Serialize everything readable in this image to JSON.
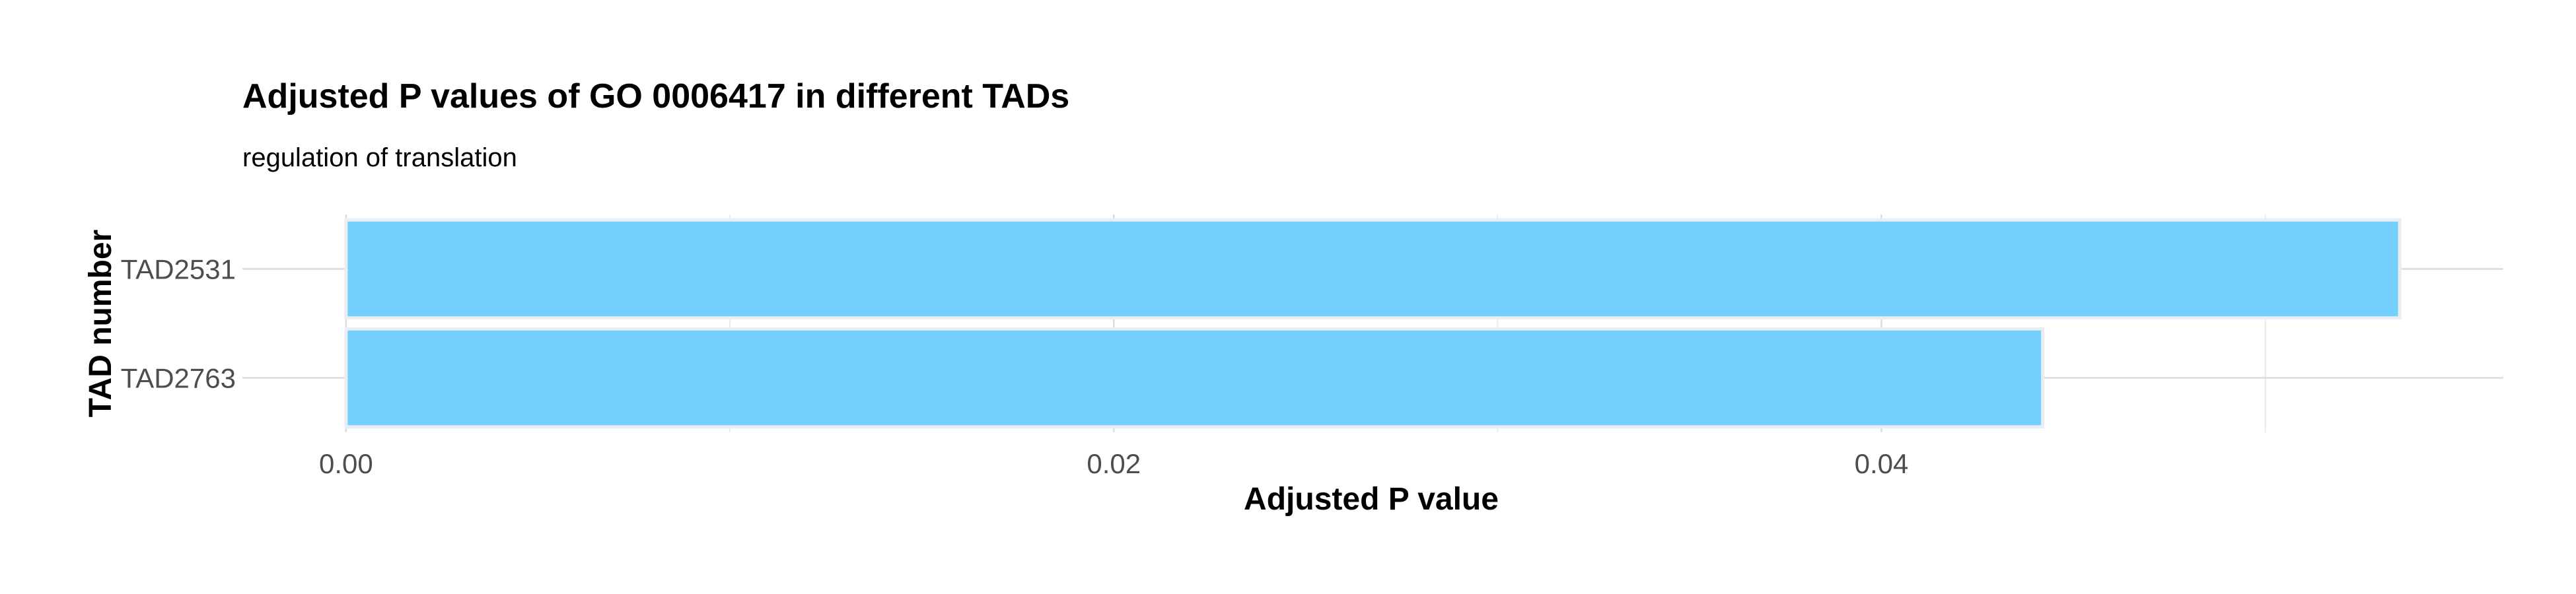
{
  "chart_data": {
    "type": "bar",
    "orientation": "horizontal",
    "title": "Adjusted P values of GO 0006417 in different TADs",
    "subtitle": "regulation of translation",
    "xlabel": "Adjusted P value",
    "ylabel": "TAD number",
    "categories": [
      "TAD2531",
      "TAD2763"
    ],
    "values": [
      0.0535,
      0.0442
    ],
    "xlim": [
      -0.0027,
      0.0562
    ],
    "xticks": [
      0.0,
      0.02,
      0.04
    ],
    "xtick_labels": [
      "0.00",
      "0.02",
      "0.04"
    ],
    "grid": true,
    "legend": "none",
    "colors": {
      "bar_fill": "#73CFFB",
      "bar_stroke": "#E8EEF3",
      "grid_major": "#DCDCDC",
      "grid_minor": "#EBEBEB"
    }
  }
}
